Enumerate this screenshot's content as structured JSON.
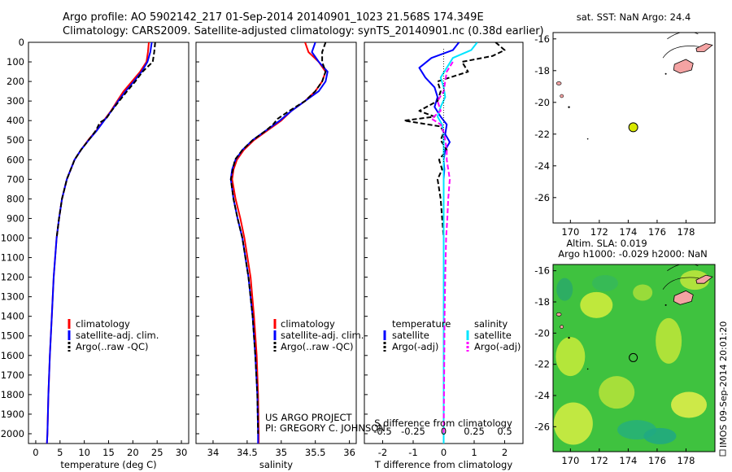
{
  "header": {
    "line1": "Argo profile: AO 5902142_217 01-Sep-2014 20140901_1023 21.568S 174.349E",
    "line2": "Climatology: CARS2009. Satellite-adjusted climatology: synTS_20140901.nc (0.38d earlier)"
  },
  "colors": {
    "climatology": "#ff0000",
    "satellite": "#0000ff",
    "argo": "#000000",
    "sat_salinity": "#00e5ff",
    "argo_salinity": "#ff00ff",
    "land": "#f4a3a3",
    "argo_marker": "#d8e800"
  },
  "depth_axis": {
    "range": [
      0,
      2050
    ],
    "ticks": [
      0,
      100,
      200,
      300,
      400,
      500,
      600,
      700,
      800,
      900,
      1000,
      1100,
      1200,
      1300,
      1400,
      1500,
      1600,
      1700,
      1800,
      1900,
      2000
    ]
  },
  "credits": {
    "project": "US ARGO PROJECT",
    "pi": "PI: GREGORY C. JOHNSON",
    "footer": "IMOS 09-Sep-2014 20:01:20"
  },
  "legends": {
    "profile": [
      "climatology",
      "satellite-adj. clim.",
      "Argo(..raw -QC)"
    ],
    "diff_temperature_title": "temperature",
    "diff_salinity_title": "salinity",
    "diff_entries": [
      "satellite",
      "Argo(-adj)"
    ]
  },
  "map_sst": {
    "title": "sat. SST: NaN Argo: 24.4",
    "lon_ticks": [
      170,
      172,
      174,
      176,
      178
    ],
    "lat_ticks": [
      -16,
      -18,
      -20,
      -22,
      -24,
      -26
    ],
    "lon_range": [
      168.8,
      180
    ],
    "lat_range": [
      -27.6,
      -15.6
    ],
    "argo_position": {
      "lon": 174.35,
      "lat": -21.57
    }
  },
  "map_sla": {
    "title1": "Altim. SLA: 0.019",
    "title2": "Argo h1000: -0.029 h2000: NaN",
    "lon_ticks": [
      170,
      172,
      174,
      176,
      178
    ],
    "lat_ticks": [
      -16,
      -18,
      -20,
      -22,
      -24,
      -26
    ],
    "lon_range": [
      168.8,
      180
    ],
    "lat_range": [
      -27.6,
      -15.6
    ],
    "argo_position": {
      "lon": 174.35,
      "lat": -21.57
    }
  },
  "chart_data": [
    {
      "type": "line",
      "name": "temperature-profile",
      "xlabel": "temperature (deg C)",
      "ylabel": "",
      "xlim": [
        -1.5,
        31.5
      ],
      "ylim": [
        2050,
        0
      ],
      "x_ticks": [
        0,
        5,
        10,
        15,
        20,
        25,
        30
      ],
      "legend": "bottom-left",
      "series": [
        {
          "name": "climatology",
          "color": "#ff0000",
          "depth": [
            0,
            50,
            100,
            150,
            200,
            250,
            300,
            350,
            400,
            450,
            500,
            550,
            600,
            700,
            800,
            900,
            1000,
            1200,
            1400,
            1600,
            1800,
            2000,
            2050
          ],
          "values": [
            23.3,
            23.1,
            22.8,
            21.5,
            19.8,
            18.1,
            16.8,
            15.5,
            14.0,
            12.5,
            10.8,
            9.3,
            8.0,
            6.4,
            5.4,
            4.8,
            4.3,
            3.7,
            3.3,
            2.9,
            2.6,
            2.4,
            2.3
          ]
        },
        {
          "name": "satellite-adj. clim.",
          "color": "#0000ff",
          "depth": [
            0,
            50,
            100,
            150,
            200,
            250,
            300,
            350,
            400,
            450,
            500,
            550,
            600,
            700,
            800,
            900,
            1000,
            1200,
            1400,
            1600,
            1800,
            2000,
            2050
          ],
          "values": [
            23.9,
            23.6,
            23.0,
            21.8,
            20.2,
            18.5,
            17.0,
            15.6,
            14.1,
            12.6,
            10.9,
            9.3,
            8.0,
            6.4,
            5.4,
            4.8,
            4.3,
            3.7,
            3.3,
            2.9,
            2.6,
            2.4,
            2.3
          ]
        },
        {
          "name": "Argo(..raw -QC)",
          "color": "#000000",
          "depth": [
            0,
            50,
            100,
            150,
            200,
            250,
            300,
            350,
            390,
            410,
            450,
            500,
            550,
            600,
            700,
            800,
            900,
            1000
          ],
          "values": [
            24.6,
            24.4,
            24.1,
            22.0,
            20.5,
            18.8,
            17.2,
            15.6,
            14.5,
            13.2,
            12.4,
            10.9,
            9.3,
            8.0,
            6.4,
            5.4,
            4.8,
            4.3
          ]
        }
      ]
    },
    {
      "type": "line",
      "name": "salinity-profile",
      "xlabel": "salinity",
      "ylabel": "",
      "xlim": [
        33.75,
        36.1
      ],
      "ylim": [
        2050,
        0
      ],
      "x_ticks": [
        34,
        34.5,
        35,
        35.5,
        36
      ],
      "legend": "bottom-left",
      "series": [
        {
          "name": "climatology",
          "color": "#ff0000",
          "depth": [
            0,
            50,
            100,
            150,
            200,
            250,
            300,
            350,
            400,
            450,
            500,
            550,
            600,
            650,
            700,
            800,
            900,
            1000,
            1200,
            1400,
            1600,
            1800,
            2000,
            2050
          ],
          "values": [
            35.35,
            35.4,
            35.55,
            35.65,
            35.6,
            35.5,
            35.35,
            35.15,
            35.0,
            34.8,
            34.6,
            34.45,
            34.35,
            34.3,
            34.28,
            34.33,
            34.4,
            34.46,
            34.55,
            34.6,
            34.64,
            34.66,
            34.67,
            34.67
          ]
        },
        {
          "name": "satellite-adj. clim.",
          "color": "#0000ff",
          "depth": [
            0,
            50,
            100,
            150,
            200,
            250,
            300,
            350,
            400,
            450,
            500,
            550,
            600,
            650,
            700,
            800,
            900,
            1000,
            1200,
            1400,
            1600,
            1800,
            2000,
            2050
          ],
          "values": [
            35.5,
            35.45,
            35.55,
            35.68,
            35.65,
            35.55,
            35.35,
            35.15,
            34.98,
            34.78,
            34.58,
            34.43,
            34.33,
            34.28,
            34.26,
            34.3,
            34.36,
            34.43,
            34.52,
            34.58,
            34.62,
            34.65,
            34.66,
            34.66
          ]
        },
        {
          "name": "Argo(..raw -QC)",
          "color": "#000000",
          "depth": [
            0,
            50,
            100,
            150,
            200,
            250,
            300,
            350,
            390,
            420,
            450,
            500,
            550,
            600,
            700,
            800,
            900,
            1000,
            1200,
            1400,
            1600,
            1800,
            2000
          ],
          "values": [
            35.65,
            35.6,
            35.6,
            35.65,
            35.6,
            35.5,
            35.35,
            35.12,
            34.95,
            34.88,
            34.78,
            34.58,
            34.43,
            34.32,
            34.26,
            34.3,
            34.36,
            34.43,
            34.52,
            34.58,
            34.62,
            34.65,
            34.66
          ]
        }
      ]
    },
    {
      "type": "line",
      "name": "difference-profile",
      "xlabel": "T difference from climatology",
      "x2label": "S difference from climatology",
      "ylabel": "",
      "xlim": [
        -2.6,
        2.6
      ],
      "ylim": [
        2050,
        0
      ],
      "x_ticks": [
        -2,
        -1,
        0,
        1,
        2
      ],
      "x2_ticks": [
        -0.5,
        -0.25,
        0,
        0.25,
        0.5
      ],
      "x2_tick_labels": [
        "-0.5",
        "-0.25",
        "0",
        "0.25",
        "0.5"
      ],
      "legend": "bottom",
      "series": [
        {
          "name": "temperature satellite",
          "color": "#0000ff",
          "depth": [
            0,
            40,
            80,
            130,
            180,
            230,
            280,
            330,
            380,
            420,
            470,
            510,
            550,
            600,
            650,
            700,
            800,
            900,
            1000,
            1500,
            2050
          ],
          "values": [
            0.5,
            0.3,
            -0.4,
            -0.8,
            -0.6,
            -0.3,
            -0.2,
            -0.3,
            -0.1,
            0.1,
            0.05,
            0.2,
            0.05,
            0.0,
            0.02,
            0.0,
            0.0,
            0.0,
            0.0,
            0.0,
            0.0
          ]
        },
        {
          "name": "temperature Argo(-adj)",
          "color": "#000000",
          "dash": true,
          "depth": [
            0,
            40,
            70,
            100,
            150,
            200,
            250,
            300,
            350,
            380,
            400,
            430,
            460,
            500,
            550,
            600,
            650,
            700,
            800,
            900,
            1000
          ],
          "values": [
            1.7,
            2.0,
            1.6,
            0.6,
            0.8,
            -0.2,
            -0.1,
            -0.2,
            -0.8,
            -0.3,
            -1.3,
            -0.1,
            0.0,
            -0.1,
            0.1,
            -0.15,
            -0.05,
            -0.2,
            -0.1,
            -0.05,
            0.0
          ]
        },
        {
          "name": "salinity satellite",
          "color": "#00e5ff",
          "depth": [
            0,
            40,
            80,
            130,
            180,
            230,
            280,
            330,
            380,
            420,
            470,
            600,
            800,
            1000,
            1500,
            2050
          ],
          "values": [
            1.1,
            0.9,
            0.3,
            0.1,
            -0.1,
            0.0,
            0.05,
            -0.1,
            -0.2,
            -0.05,
            0.0,
            0.0,
            0.0,
            0.0,
            0.0,
            0.0
          ]
        },
        {
          "name": "salinity Argo(-adj)",
          "color": "#ff00ff",
          "dash": true,
          "depth": [
            100,
            150,
            200,
            250,
            300,
            350,
            390,
            420,
            460,
            500,
            550,
            600,
            700,
            800,
            900,
            1000,
            1200,
            1400,
            1600,
            1800,
            2000
          ],
          "values": [
            0.3,
            0.1,
            0.05,
            0.0,
            -0.2,
            -0.1,
            -0.4,
            -0.1,
            0.0,
            0.05,
            0.1,
            0.1,
            0.2,
            0.15,
            0.12,
            0.08,
            0.05,
            0.03,
            0.02,
            0.01,
            0.0
          ]
        }
      ]
    }
  ]
}
